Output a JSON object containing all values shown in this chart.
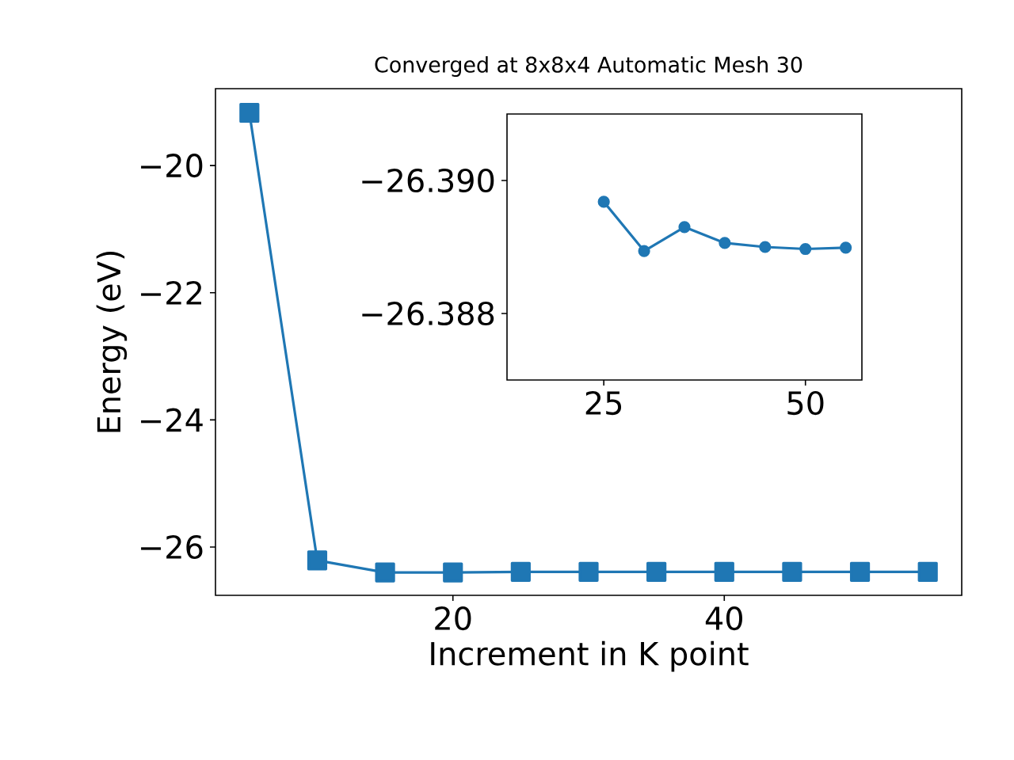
{
  "chart_data": [
    {
      "type": "line",
      "title": "Converged at 8x8x4 Automatic Mesh 30",
      "xlabel": "Increment in K point",
      "ylabel": "Energy (eV)",
      "marker": "square",
      "line_style": "solid",
      "x": [
        5,
        10,
        15,
        20,
        25,
        30,
        35,
        40,
        45,
        50,
        55
      ],
      "series": [
        {
          "color": "#1f77b4",
          "values": [
            -19.17,
            -26.21,
            -26.4,
            -26.4,
            -26.39,
            -26.39,
            -26.39,
            -26.39,
            -26.39,
            -26.39,
            -26.39
          ]
        }
      ],
      "xlim": [
        2.5,
        57.5
      ],
      "ylim": [
        -26.76,
        -18.79
      ],
      "xticks": [
        20,
        40
      ],
      "yticks": [
        {
          "value": -26,
          "label": "−26"
        },
        {
          "value": -24,
          "label": "−24"
        },
        {
          "value": -22,
          "label": "−22"
        },
        {
          "value": -20,
          "label": "−20"
        }
      ]
    },
    {
      "type": "line",
      "marker": "circle",
      "line_style": "solid",
      "x": [
        25,
        30,
        35,
        40,
        45,
        50,
        55
      ],
      "series": [
        {
          "color": "#1f77b4",
          "values": [
            -26.38968,
            -26.38894,
            -26.3893,
            -26.38906,
            -26.389,
            -26.38897,
            -26.38899
          ]
        }
      ],
      "xlim": [
        13,
        57
      ],
      "ylim": [
        -26.387,
        -26.391
      ],
      "xticks": [
        25,
        50
      ],
      "yticks": [
        {
          "value": -26.39,
          "label": "−26.390"
        },
        {
          "value": -26.388,
          "label": "−26.388"
        }
      ]
    }
  ]
}
